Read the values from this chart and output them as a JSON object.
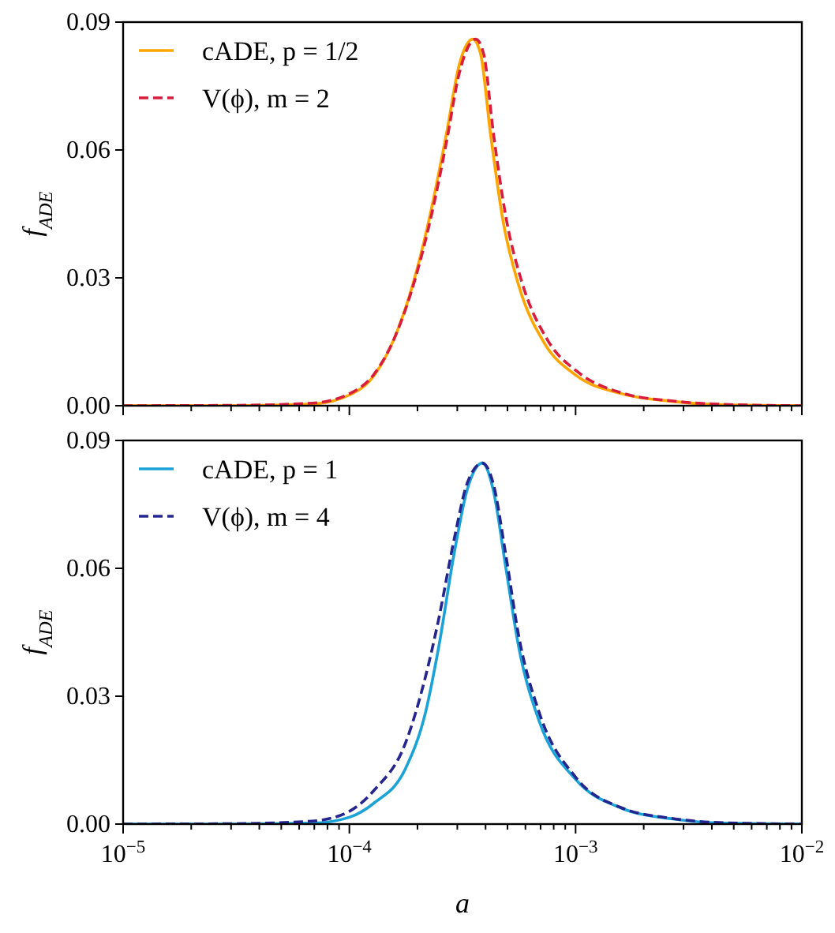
{
  "chart_data": [
    {
      "type": "line",
      "ylabel": "f$_{ADE}$",
      "legend": "top left",
      "tick_labels": "y",
      "xlim": [
        1e-05,
        0.01
      ],
      "log": "x",
      "ylim": [
        0,
        0.09
      ],
      "yticks": [
        {
          "value": 0,
          "label": "0.00"
        },
        {
          "value": 0.03,
          "label": "0.03"
        },
        {
          "value": 0.06,
          "label": "0.06"
        },
        {
          "value": 0.09,
          "label": "0.09"
        }
      ],
      "xticks": [
        {
          "value": 1e-05,
          "label": null
        },
        {
          "value": 2e-05,
          "label": null
        },
        {
          "value": 3e-05,
          "label": null
        },
        {
          "value": 4e-05,
          "label": null
        },
        {
          "value": 5e-05,
          "label": null
        },
        {
          "value": 6e-05,
          "label": null
        },
        {
          "value": 7e-05,
          "label": null
        },
        {
          "value": 8e-05,
          "label": null
        },
        {
          "value": 9e-05,
          "label": null
        },
        {
          "value": 0.0001,
          "label": null
        },
        {
          "value": 0.0002,
          "label": null
        },
        {
          "value": 0.0003,
          "label": null
        },
        {
          "value": 0.0004,
          "label": null
        },
        {
          "value": 0.0005,
          "label": null
        },
        {
          "value": 0.0006,
          "label": null
        },
        {
          "value": 0.0007,
          "label": null
        },
        {
          "value": 0.0008,
          "label": null
        },
        {
          "value": 0.0009,
          "label": null
        },
        {
          "value": 0.001,
          "label": null
        },
        {
          "value": 0.002,
          "label": null
        },
        {
          "value": 0.003,
          "label": null
        },
        {
          "value": 0.004,
          "label": null
        },
        {
          "value": 0.005,
          "label": null
        },
        {
          "value": 0.006,
          "label": null
        },
        {
          "value": 0.007,
          "label": null
        },
        {
          "value": 0.008,
          "label": null
        },
        {
          "value": 0.009,
          "label": null
        },
        {
          "value": 0.01,
          "label": null
        }
      ],
      "series": [
        {
          "name": "cADE, p = 1/2",
          "color": "#ffa500",
          "line_style": "solid",
          "x": [
            1e-05,
            3.16e-05,
            6.86e-05,
            0.0001,
            0.000129,
            0.000158,
            0.000196,
            0.000229,
            0.000269,
            0.000306,
            0.000351,
            0.00038,
            0.00042,
            0.000479,
            0.000562,
            0.000729,
            0.001,
            0.0016,
            0.00269,
            0.00457,
            0.01
          ],
          "values": [
            0,
            0,
            0.0004,
            0.0025,
            0.0072,
            0.0158,
            0.0307,
            0.0455,
            0.064,
            0.08,
            0.086,
            0.0826,
            0.064,
            0.043,
            0.028,
            0.0146,
            0.0072,
            0.0028,
            0.001,
            0.0002,
            0
          ]
        },
        {
          "name": "V(ϕ), m = 2",
          "color": "#d81e3c",
          "line_style": "dashed",
          "x": [
            1e-05,
            3.16e-05,
            6.86e-05,
            0.0001,
            0.000129,
            0.000158,
            0.000196,
            0.000229,
            0.000269,
            0.000306,
            0.000362,
            0.000392,
            0.000433,
            0.000493,
            0.000579,
            0.00075,
            0.00103,
            0.0016,
            0.00269,
            0.00457,
            0.01
          ],
          "values": [
            0,
            0.0001,
            0.0006,
            0.0028,
            0.0075,
            0.0158,
            0.03,
            0.044,
            0.062,
            0.078,
            0.086,
            0.0826,
            0.064,
            0.044,
            0.029,
            0.0155,
            0.0078,
            0.003,
            0.0011,
            0.0003,
            0
          ]
        }
      ]
    },
    {
      "type": "line",
      "xlabel": "a",
      "ylabel": "f$_{ADE}$",
      "legend": "top left",
      "xlim": [
        1e-05,
        0.01
      ],
      "log": "x",
      "ylim": [
        0,
        0.09
      ],
      "yticks": [
        {
          "value": 0,
          "label": "0.00"
        },
        {
          "value": 0.03,
          "label": "0.03"
        },
        {
          "value": 0.06,
          "label": "0.06"
        },
        {
          "value": 0.09,
          "label": "0.09"
        }
      ],
      "xticks": [
        {
          "value": 1e-05,
          "label": "10$^{−5}$"
        },
        {
          "value": 2e-05,
          "label": null
        },
        {
          "value": 3e-05,
          "label": null
        },
        {
          "value": 4e-05,
          "label": null
        },
        {
          "value": 5e-05,
          "label": null
        },
        {
          "value": 6e-05,
          "label": null
        },
        {
          "value": 7e-05,
          "label": null
        },
        {
          "value": 8e-05,
          "label": null
        },
        {
          "value": 9e-05,
          "label": null
        },
        {
          "value": 0.0001,
          "label": "10$^{−4}$"
        },
        {
          "value": 0.0002,
          "label": null
        },
        {
          "value": 0.0003,
          "label": null
        },
        {
          "value": 0.0004,
          "label": null
        },
        {
          "value": 0.0005,
          "label": null
        },
        {
          "value": 0.0006,
          "label": null
        },
        {
          "value": 0.0007,
          "label": null
        },
        {
          "value": 0.0008,
          "label": null
        },
        {
          "value": 0.0009,
          "label": null
        },
        {
          "value": 0.001,
          "label": "10$^{−3}$"
        },
        {
          "value": 0.002,
          "label": null
        },
        {
          "value": 0.003,
          "label": null
        },
        {
          "value": 0.004,
          "label": null
        },
        {
          "value": 0.005,
          "label": null
        },
        {
          "value": 0.006,
          "label": null
        },
        {
          "value": 0.007,
          "label": null
        },
        {
          "value": 0.008,
          "label": null
        },
        {
          "value": 0.009,
          "label": null
        },
        {
          "value": 0.01,
          "label": "10$^{−2}$"
        }
      ],
      "series": [
        {
          "name": "cADE, p = 1",
          "color": "#1ba3d8",
          "line_style": "solid",
          "x": [
            1e-05,
            3.16e-05,
            6.86e-05,
            0.0001,
            0.000129,
            0.000177,
            0.000218,
            0.000248,
            0.000291,
            0.000332,
            0.000387,
            0.000432,
            0.000492,
            0.000561,
            0.000692,
            0.001,
            0.0016,
            0.00269,
            0.00457,
            0.01
          ],
          "values": [
            0,
            0,
            0.0002,
            0.0016,
            0.005,
            0.013,
            0.0266,
            0.0414,
            0.0637,
            0.0785,
            0.0847,
            0.0785,
            0.06,
            0.0414,
            0.024,
            0.0105,
            0.0037,
            0.0012,
            0.0002,
            0
          ]
        },
        {
          "name": "V(ϕ), m = 4",
          "color": "#25258f",
          "line_style": "dashed",
          "x": [
            1e-05,
            3.16e-05,
            6.86e-05,
            0.0001,
            0.000129,
            0.000177,
            0.000218,
            0.000248,
            0.000291,
            0.000332,
            0.000387,
            0.000432,
            0.000492,
            0.000561,
            0.000692,
            0.001,
            0.0016,
            0.00269,
            0.00457,
            0.01
          ],
          "values": [
            0,
            0.0001,
            0.0007,
            0.003,
            0.008,
            0.019,
            0.035,
            0.048,
            0.067,
            0.08,
            0.0847,
            0.08,
            0.063,
            0.044,
            0.026,
            0.011,
            0.0038,
            0.0013,
            0.0003,
            0
          ]
        }
      ]
    }
  ]
}
